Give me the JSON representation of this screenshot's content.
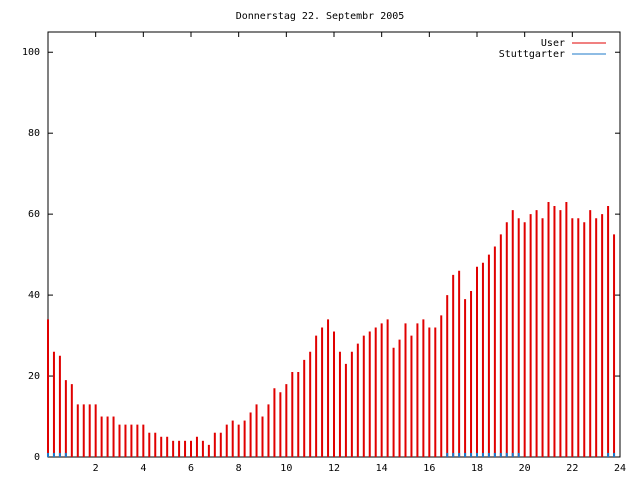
{
  "chart_data": {
    "type": "impulse",
    "title": "Donnerstag 22. Septembr 2005",
    "x": [
      0,
      0.25,
      0.5,
      0.75,
      1,
      1.25,
      1.5,
      1.75,
      2,
      2.25,
      2.5,
      2.75,
      3,
      3.25,
      3.5,
      3.75,
      4,
      4.25,
      4.5,
      4.75,
      5,
      5.25,
      5.5,
      5.75,
      6,
      6.25,
      6.5,
      6.75,
      7,
      7.25,
      7.5,
      7.75,
      8,
      8.25,
      8.5,
      8.75,
      9,
      9.25,
      9.5,
      9.75,
      10,
      10.25,
      10.5,
      10.75,
      11,
      11.25,
      11.5,
      11.75,
      12,
      12.25,
      12.5,
      12.75,
      13,
      13.25,
      13.5,
      13.75,
      14,
      14.25,
      14.5,
      14.75,
      15,
      15.25,
      15.5,
      15.75,
      16,
      16.25,
      16.5,
      16.75,
      17,
      17.25,
      17.5,
      17.75,
      18,
      18.25,
      18.5,
      18.75,
      19,
      19.25,
      19.5,
      19.75,
      20,
      20.25,
      20.5,
      20.75,
      21,
      21.25,
      21.5,
      21.75,
      22,
      22.25,
      22.5,
      22.75,
      23,
      23.25,
      23.5,
      23.75
    ],
    "series": [
      {
        "name": "User",
        "color": "#e00000",
        "values": [
          34,
          26,
          25,
          19,
          18,
          13,
          13,
          13,
          13,
          10,
          10,
          10,
          8,
          8,
          8,
          8,
          8,
          6,
          6,
          5,
          5,
          4,
          4,
          4,
          4,
          5,
          4,
          3,
          6,
          6,
          8,
          9,
          8,
          9,
          11,
          13,
          10,
          13,
          17,
          16,
          18,
          21,
          21,
          24,
          26,
          30,
          32,
          34,
          31,
          26,
          23,
          26,
          28,
          30,
          31,
          32,
          33,
          34,
          27,
          29,
          33,
          30,
          33,
          34,
          32,
          32,
          35,
          40,
          45,
          46,
          39,
          41,
          47,
          48,
          50,
          52,
          55,
          58,
          61,
          59,
          58,
          60,
          61,
          59,
          63,
          62,
          61,
          63,
          59,
          59,
          58,
          61,
          59,
          60,
          62,
          55
        ]
      },
      {
        "name": "Stuttgarter",
        "color": "#1e78c8",
        "values": [
          1,
          1,
          1,
          1,
          0,
          0,
          0,
          0,
          0,
          0,
          0,
          0,
          0,
          0,
          0,
          0,
          0,
          0,
          0,
          0,
          0,
          0,
          0,
          0,
          0,
          0,
          0,
          0,
          0,
          0,
          0,
          0,
          0,
          0,
          0,
          0,
          0,
          0,
          0,
          0,
          0,
          0,
          0,
          0,
          0,
          0,
          0,
          0,
          0,
          0,
          0,
          0,
          0,
          0,
          0,
          0,
          0,
          0,
          0,
          0,
          0,
          0,
          0,
          0,
          0,
          0,
          0,
          1,
          1,
          1,
          1,
          1,
          1,
          1,
          1,
          1,
          1,
          1,
          1,
          1,
          0,
          0,
          0,
          0,
          0,
          0,
          0,
          0,
          0,
          0,
          0,
          0,
          0,
          0,
          1,
          1
        ]
      }
    ],
    "xlim": [
      0,
      24
    ],
    "xticks": [
      2,
      4,
      6,
      8,
      10,
      12,
      14,
      16,
      18,
      20,
      22,
      24
    ],
    "ylim": [
      0,
      105
    ],
    "yticks": [
      0,
      20,
      40,
      60,
      80,
      100
    ]
  }
}
